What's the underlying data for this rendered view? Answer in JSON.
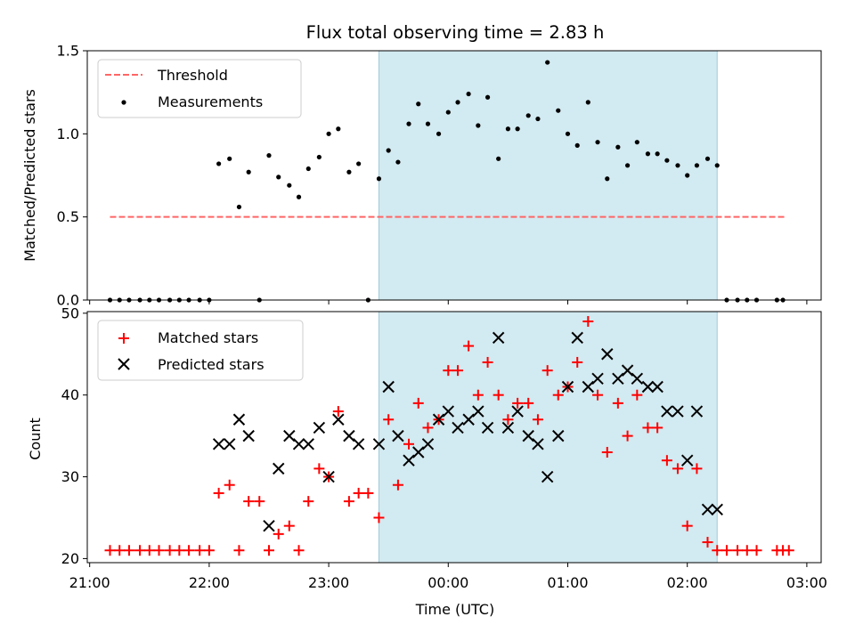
{
  "chart_data": [
    {
      "type": "scatter",
      "title": "Flux total observing time = 2.83 h",
      "ylabel": "Matched/Predicted stars",
      "xlabel": "",
      "xlim": [
        20.98,
        27.12
      ],
      "ylim": [
        0,
        1.5
      ],
      "yticks": [
        "0.0",
        "0.5",
        "1.0",
        "1.5"
      ],
      "shaded_span": [
        23.42,
        26.25
      ],
      "colors": {
        "threshold": "#ff6666",
        "measurements": "#000000",
        "span": "#add8e6"
      },
      "threshold": {
        "name": "Threshold",
        "x": [
          21.17,
          26.83
        ],
        "y": [
          0.5,
          0.5
        ]
      },
      "legend_position": "upper left",
      "series": [
        {
          "name": "Measurements",
          "points": [
            [
              21.17,
              0
            ],
            [
              21.25,
              0
            ],
            [
              21.33,
              0
            ],
            [
              21.42,
              0
            ],
            [
              21.5,
              0
            ],
            [
              21.58,
              0
            ],
            [
              21.67,
              0
            ],
            [
              21.75,
              0
            ],
            [
              21.83,
              0
            ],
            [
              21.92,
              0
            ],
            [
              22.0,
              0
            ],
            [
              22.08,
              0.82
            ],
            [
              22.17,
              0.85
            ],
            [
              22.25,
              0.56
            ],
            [
              22.33,
              0.77
            ],
            [
              22.42,
              0
            ],
            [
              22.5,
              0.87
            ],
            [
              22.58,
              0.74
            ],
            [
              22.67,
              0.69
            ],
            [
              22.75,
              0.62
            ],
            [
              22.83,
              0.79
            ],
            [
              22.92,
              0.86
            ],
            [
              23.0,
              1.0
            ],
            [
              23.08,
              1.03
            ],
            [
              23.17,
              0.77
            ],
            [
              23.25,
              0.82
            ],
            [
              23.33,
              0
            ],
            [
              23.42,
              0.73
            ],
            [
              23.5,
              0.9
            ],
            [
              23.58,
              0.83
            ],
            [
              23.67,
              1.06
            ],
            [
              23.75,
              1.18
            ],
            [
              23.83,
              1.06
            ],
            [
              23.92,
              1.0
            ],
            [
              24.0,
              1.13
            ],
            [
              24.08,
              1.19
            ],
            [
              24.17,
              1.24
            ],
            [
              24.25,
              1.05
            ],
            [
              24.33,
              1.22
            ],
            [
              24.42,
              0.85
            ],
            [
              24.5,
              1.03
            ],
            [
              24.58,
              1.03
            ],
            [
              24.67,
              1.11
            ],
            [
              24.75,
              1.09
            ],
            [
              24.83,
              1.43
            ],
            [
              24.92,
              1.14
            ],
            [
              25.0,
              1.0
            ],
            [
              25.08,
              0.93
            ],
            [
              25.17,
              1.19
            ],
            [
              25.25,
              0.95
            ],
            [
              25.33,
              0.73
            ],
            [
              25.42,
              0.92
            ],
            [
              25.5,
              0.81
            ],
            [
              25.58,
              0.95
            ],
            [
              25.67,
              0.88
            ],
            [
              25.75,
              0.88
            ],
            [
              25.83,
              0.84
            ],
            [
              25.92,
              0.81
            ],
            [
              26.0,
              0.75
            ],
            [
              26.08,
              0.81
            ],
            [
              26.17,
              0.85
            ],
            [
              26.25,
              0.81
            ],
            [
              26.33,
              0
            ],
            [
              26.42,
              0
            ],
            [
              26.5,
              0
            ],
            [
              26.58,
              0
            ],
            [
              26.75,
              0
            ],
            [
              26.8,
              0
            ]
          ]
        }
      ]
    },
    {
      "type": "scatter",
      "title": "",
      "xlabel": "Time (UTC)",
      "ylabel": "Count",
      "xlim": [
        20.98,
        27.12
      ],
      "ylim": [
        19.5,
        50.2
      ],
      "yticks": [
        "20",
        "30",
        "40",
        "50"
      ],
      "xticks": [
        {
          "value": 21,
          "label": "21:00"
        },
        {
          "value": 22,
          "label": "22:00"
        },
        {
          "value": 23,
          "label": "23:00"
        },
        {
          "value": 24,
          "label": "00:00"
        },
        {
          "value": 25,
          "label": "01:00"
        },
        {
          "value": 26,
          "label": "02:00"
        },
        {
          "value": 27,
          "label": "03:00"
        }
      ],
      "shaded_span": [
        23.42,
        26.25
      ],
      "colors": {
        "matched": "#ff0000",
        "predicted": "#000000",
        "span": "#add8e6"
      },
      "legend_position": "upper left",
      "series": [
        {
          "name": "Matched stars",
          "marker": "plus",
          "points": [
            [
              21.17,
              21
            ],
            [
              21.25,
              21
            ],
            [
              21.33,
              21
            ],
            [
              21.42,
              21
            ],
            [
              21.5,
              21
            ],
            [
              21.58,
              21
            ],
            [
              21.67,
              21
            ],
            [
              21.75,
              21
            ],
            [
              21.83,
              21
            ],
            [
              21.92,
              21
            ],
            [
              22.0,
              21
            ],
            [
              22.08,
              28
            ],
            [
              22.17,
              29
            ],
            [
              22.25,
              21
            ],
            [
              22.33,
              27
            ],
            [
              22.42,
              27
            ],
            [
              22.5,
              21
            ],
            [
              22.58,
              23
            ],
            [
              22.67,
              24
            ],
            [
              22.75,
              21
            ],
            [
              22.83,
              27
            ],
            [
              22.92,
              31
            ],
            [
              23.0,
              30
            ],
            [
              23.08,
              38
            ],
            [
              23.17,
              27
            ],
            [
              23.25,
              28
            ],
            [
              23.33,
              28
            ],
            [
              23.42,
              25
            ],
            [
              23.5,
              37
            ],
            [
              23.58,
              29
            ],
            [
              23.67,
              34
            ],
            [
              23.75,
              39
            ],
            [
              23.83,
              36
            ],
            [
              23.92,
              37
            ],
            [
              24.0,
              43
            ],
            [
              24.08,
              43
            ],
            [
              24.17,
              46
            ],
            [
              24.25,
              40
            ],
            [
              24.33,
              44
            ],
            [
              24.42,
              40
            ],
            [
              24.5,
              37
            ],
            [
              24.58,
              39
            ],
            [
              24.67,
              39
            ],
            [
              24.75,
              37
            ],
            [
              24.83,
              43
            ],
            [
              24.92,
              40
            ],
            [
              25.0,
              41
            ],
            [
              25.08,
              44
            ],
            [
              25.17,
              49
            ],
            [
              25.25,
              40
            ],
            [
              25.33,
              33
            ],
            [
              25.42,
              39
            ],
            [
              25.5,
              35
            ],
            [
              25.58,
              40
            ],
            [
              25.67,
              36
            ],
            [
              25.75,
              36
            ],
            [
              25.83,
              32
            ],
            [
              25.92,
              31
            ],
            [
              26.0,
              24
            ],
            [
              26.08,
              31
            ],
            [
              26.17,
              22
            ],
            [
              26.25,
              21
            ],
            [
              26.33,
              21
            ],
            [
              26.42,
              21
            ],
            [
              26.5,
              21
            ],
            [
              26.58,
              21
            ],
            [
              26.75,
              21
            ],
            [
              26.8,
              21
            ],
            [
              26.85,
              21
            ]
          ]
        },
        {
          "name": "Predicted stars",
          "marker": "x",
          "points": [
            [
              22.08,
              34
            ],
            [
              22.17,
              34
            ],
            [
              22.25,
              37
            ],
            [
              22.33,
              35
            ],
            [
              22.5,
              24
            ],
            [
              22.58,
              31
            ],
            [
              22.67,
              35
            ],
            [
              22.75,
              34
            ],
            [
              22.83,
              34
            ],
            [
              22.92,
              36
            ],
            [
              23.0,
              30
            ],
            [
              23.08,
              37
            ],
            [
              23.17,
              35
            ],
            [
              23.25,
              34
            ],
            [
              23.42,
              34
            ],
            [
              23.5,
              41
            ],
            [
              23.58,
              35
            ],
            [
              23.67,
              32
            ],
            [
              23.75,
              33
            ],
            [
              23.83,
              34
            ],
            [
              23.92,
              37
            ],
            [
              24.0,
              38
            ],
            [
              24.08,
              36
            ],
            [
              24.17,
              37
            ],
            [
              24.25,
              38
            ],
            [
              24.33,
              36
            ],
            [
              24.42,
              47
            ],
            [
              24.5,
              36
            ],
            [
              24.58,
              38
            ],
            [
              24.67,
              35
            ],
            [
              24.75,
              34
            ],
            [
              24.83,
              30
            ],
            [
              24.92,
              35
            ],
            [
              25.0,
              41
            ],
            [
              25.08,
              47
            ],
            [
              25.17,
              41
            ],
            [
              25.25,
              42
            ],
            [
              25.33,
              45
            ],
            [
              25.42,
              42
            ],
            [
              25.5,
              43
            ],
            [
              25.58,
              42
            ],
            [
              25.67,
              41
            ],
            [
              25.75,
              41
            ],
            [
              25.83,
              38
            ],
            [
              25.92,
              38
            ],
            [
              26.0,
              32
            ],
            [
              26.08,
              38
            ],
            [
              26.17,
              26
            ],
            [
              26.25,
              26
            ]
          ]
        }
      ]
    }
  ]
}
